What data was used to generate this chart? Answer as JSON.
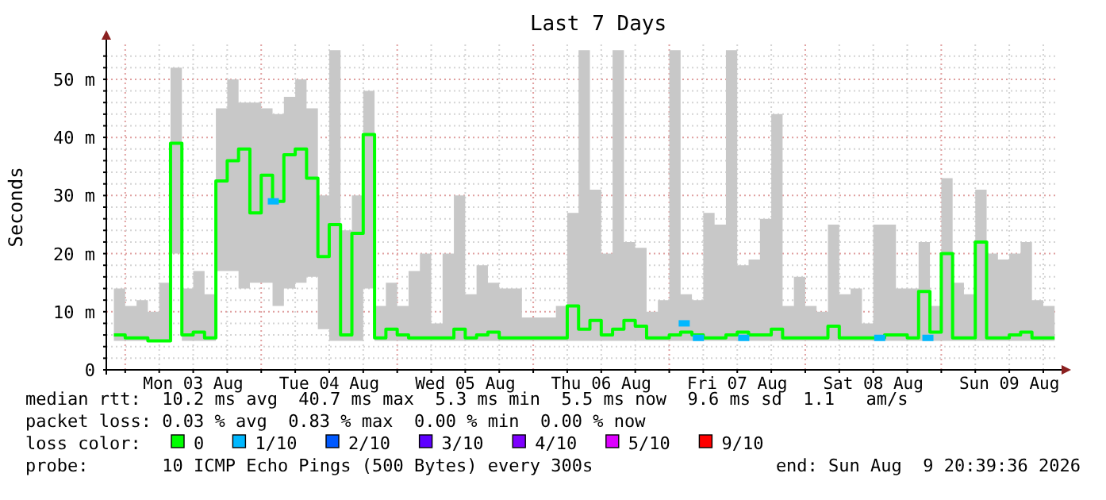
{
  "chart_data": {
    "type": "step",
    "title": "Last 7 Days",
    "ylabel": "Seconds",
    "xlim": [
      "2026-08-02T20:40",
      "2026-08-09T20:40"
    ],
    "xticks": [
      {
        "value": "2026-08-03T00:00",
        "label": null
      },
      {
        "value": "2026-08-03T06:00",
        "label": null
      },
      {
        "value": "2026-08-03T12:00",
        "label": "Mon 03 Aug"
      },
      {
        "value": "2026-08-03T18:00",
        "label": null
      },
      {
        "value": "2026-08-04T00:00",
        "label": null
      },
      {
        "value": "2026-08-04T06:00",
        "label": null
      },
      {
        "value": "2026-08-04T12:00",
        "label": "Tue 04 Aug"
      },
      {
        "value": "2026-08-04T18:00",
        "label": null
      },
      {
        "value": "2026-08-05T00:00",
        "label": null
      },
      {
        "value": "2026-08-05T06:00",
        "label": null
      },
      {
        "value": "2026-08-05T12:00",
        "label": "Wed 05 Aug"
      },
      {
        "value": "2026-08-05T18:00",
        "label": null
      },
      {
        "value": "2026-08-06T00:00",
        "label": null
      },
      {
        "value": "2026-08-06T06:00",
        "label": null
      },
      {
        "value": "2026-08-06T12:00",
        "label": "Thu 06 Aug"
      },
      {
        "value": "2026-08-06T18:00",
        "label": null
      },
      {
        "value": "2026-08-07T00:00",
        "label": null
      },
      {
        "value": "2026-08-07T06:00",
        "label": null
      },
      {
        "value": "2026-08-07T12:00",
        "label": "Fri 07 Aug"
      },
      {
        "value": "2026-08-07T18:00",
        "label": null
      },
      {
        "value": "2026-08-08T00:00",
        "label": null
      },
      {
        "value": "2026-08-08T06:00",
        "label": null
      },
      {
        "value": "2026-08-08T12:00",
        "label": "Sat 08 Aug"
      },
      {
        "value": "2026-08-08T18:00",
        "label": null
      },
      {
        "value": "2026-08-09T00:00",
        "label": null
      },
      {
        "value": "2026-08-09T06:00",
        "label": null
      },
      {
        "value": "2026-08-09T12:00",
        "label": "Sun 09 Aug"
      },
      {
        "value": "2026-08-09T18:00",
        "label": null
      }
    ],
    "ylim": [
      0,
      56
    ],
    "yticks": [
      {
        "value": 0,
        "label": "0"
      },
      {
        "value": 2,
        "label": null
      },
      {
        "value": 4,
        "label": null
      },
      {
        "value": 6,
        "label": null
      },
      {
        "value": 8,
        "label": null
      },
      {
        "value": 10,
        "label": "10 m"
      },
      {
        "value": 12,
        "label": null
      },
      {
        "value": 14,
        "label": null
      },
      {
        "value": 16,
        "label": null
      },
      {
        "value": 18,
        "label": null
      },
      {
        "value": 20,
        "label": "20 m"
      },
      {
        "value": 22,
        "label": null
      },
      {
        "value": 24,
        "label": null
      },
      {
        "value": 26,
        "label": null
      },
      {
        "value": 28,
        "label": null
      },
      {
        "value": 30,
        "label": "30 m"
      },
      {
        "value": 32,
        "label": null
      },
      {
        "value": 34,
        "label": null
      },
      {
        "value": 36,
        "label": null
      },
      {
        "value": 38,
        "label": null
      },
      {
        "value": 40,
        "label": "40 m"
      },
      {
        "value": 42,
        "label": null
      },
      {
        "value": 44,
        "label": null
      },
      {
        "value": 46,
        "label": null
      },
      {
        "value": 48,
        "label": null
      },
      {
        "value": 50,
        "label": "50 m"
      },
      {
        "value": 52,
        "label": null
      },
      {
        "value": 54,
        "label": null
      }
    ],
    "grid": true,
    "legend": "bottom",
    "series": [
      {
        "name": "0",
        "color": "#00ff00",
        "x": [
          "2026-08-02T22:00",
          "2026-08-03T00:00",
          "2026-08-03T02:00",
          "2026-08-03T04:00",
          "2026-08-03T06:00",
          "2026-08-03T08:00",
          "2026-08-03T10:00",
          "2026-08-03T12:00",
          "2026-08-03T14:00",
          "2026-08-03T16:00",
          "2026-08-03T18:00",
          "2026-08-03T20:00",
          "2026-08-03T22:00",
          "2026-08-04T00:00",
          "2026-08-04T02:00",
          "2026-08-04T04:00",
          "2026-08-04T06:00",
          "2026-08-04T08:00",
          "2026-08-04T10:00",
          "2026-08-04T12:00",
          "2026-08-04T14:00",
          "2026-08-04T16:00",
          "2026-08-04T18:00",
          "2026-08-04T20:00",
          "2026-08-04T22:00",
          "2026-08-05T00:00",
          "2026-08-05T02:00",
          "2026-08-05T04:00",
          "2026-08-05T06:00",
          "2026-08-05T08:00",
          "2026-08-05T10:00",
          "2026-08-05T12:00",
          "2026-08-05T14:00",
          "2026-08-05T16:00",
          "2026-08-05T18:00",
          "2026-08-05T20:00",
          "2026-08-05T22:00",
          "2026-08-06T00:00",
          "2026-08-06T02:00",
          "2026-08-06T04:00",
          "2026-08-06T06:00",
          "2026-08-06T08:00",
          "2026-08-06T10:00",
          "2026-08-06T12:00",
          "2026-08-06T14:00",
          "2026-08-06T16:00",
          "2026-08-06T18:00",
          "2026-08-06T20:00",
          "2026-08-06T22:00",
          "2026-08-07T00:00",
          "2026-08-07T02:00",
          "2026-08-07T04:00",
          "2026-08-07T06:00",
          "2026-08-07T08:00",
          "2026-08-07T10:00",
          "2026-08-07T12:00",
          "2026-08-07T14:00",
          "2026-08-07T16:00",
          "2026-08-07T18:00",
          "2026-08-07T20:00",
          "2026-08-07T22:00",
          "2026-08-08T00:00",
          "2026-08-08T02:00",
          "2026-08-08T04:00",
          "2026-08-08T06:00",
          "2026-08-08T08:00",
          "2026-08-08T10:00",
          "2026-08-08T12:00",
          "2026-08-08T14:00",
          "2026-08-08T16:00",
          "2026-08-08T18:00",
          "2026-08-08T20:00",
          "2026-08-08T22:00",
          "2026-08-09T00:00",
          "2026-08-09T02:00",
          "2026-08-09T04:00",
          "2026-08-09T06:00",
          "2026-08-09T08:00",
          "2026-08-09T10:00",
          "2026-08-09T12:00",
          "2026-08-09T14:00",
          "2026-08-09T16:00",
          "2026-08-09T18:00",
          "2026-08-09T20:00"
        ],
        "values": [
          6,
          5.5,
          5.5,
          5,
          5,
          39,
          6,
          6.5,
          5.5,
          32.5,
          36,
          38,
          27,
          33.5,
          29,
          37,
          38,
          33,
          19.5,
          25,
          6,
          23.5,
          40.5,
          5.5,
          7,
          6,
          5.5,
          5.5,
          5.5,
          5.5,
          7,
          5.5,
          6,
          6.5,
          5.5,
          5.5,
          5.5,
          5.5,
          5.5,
          5.5,
          11,
          7,
          8.5,
          6,
          7,
          8.5,
          7.5,
          5.5,
          5.5,
          6,
          6.5,
          6,
          5.5,
          5.5,
          6,
          6.5,
          6,
          6,
          7,
          5.5,
          5.5,
          5.5,
          5.5,
          7.5,
          5.5,
          5.5,
          5.5,
          5.5,
          6,
          6,
          5.5,
          13.5,
          6.5,
          20,
          5.5,
          5.5,
          22,
          5.5,
          5.5,
          6,
          6.5,
          5.5,
          5.5,
          5.5
        ],
        "lower": [
          5,
          5,
          5,
          5,
          5,
          20,
          5,
          5,
          5,
          17,
          17,
          14,
          15,
          15,
          11,
          14,
          15,
          16,
          7,
          5,
          5,
          5,
          14,
          5,
          5,
          5,
          5,
          5,
          5,
          5,
          5,
          5,
          5,
          5,
          5,
          5,
          5,
          5,
          5,
          5,
          5,
          5,
          5,
          5,
          5,
          5,
          5,
          5,
          5,
          5,
          5,
          5,
          5,
          5,
          5,
          5,
          5,
          5,
          5,
          5,
          5,
          5,
          5,
          5,
          5,
          5,
          5,
          5,
          5,
          5,
          5,
          5,
          5,
          5,
          5,
          5,
          5,
          5,
          5,
          5,
          5,
          5,
          5,
          5
        ],
        "upper": [
          14,
          11,
          12,
          10,
          15,
          52,
          14,
          17,
          13,
          45,
          50,
          46,
          46,
          45,
          44,
          47,
          50,
          45,
          30,
          55,
          24,
          30,
          48,
          11,
          15,
          11,
          17,
          20,
          8,
          20,
          30,
          13,
          18,
          15,
          14,
          14,
          9,
          9,
          9,
          11,
          27,
          55,
          31,
          20,
          55,
          22,
          21,
          10,
          12,
          55,
          13,
          12,
          27,
          25,
          55,
          18,
          19,
          26,
          44,
          11,
          16,
          11,
          10,
          25,
          13,
          14,
          8,
          25,
          25,
          14,
          14,
          22,
          11,
          33,
          15,
          13,
          31,
          20,
          19,
          20,
          22,
          12,
          11,
          10
        ]
      },
      {
        "name": "1/10",
        "color": "#00b8ff",
        "type": "scatter",
        "x": [
          "2026-08-04T02:00",
          "2026-08-07T02:30",
          "2026-08-07T05:00",
          "2026-08-07T13:00",
          "2026-08-08T13:00",
          "2026-08-08T21:30"
        ],
        "values": [
          29,
          8,
          5.5,
          5.5,
          5.5,
          5.5
        ]
      },
      {
        "name": "2/10",
        "color": "#0059ff",
        "type": "scatter"
      },
      {
        "name": "3/10",
        "color": "#5e00ff",
        "type": "scatter"
      },
      {
        "name": "4/10",
        "color": "#7e00ff",
        "type": "scatter"
      },
      {
        "name": "5/10",
        "color": "#dd00ff",
        "type": "scatter"
      },
      {
        "name": "9/10",
        "color": "#ff0000",
        "type": "scatter"
      }
    ],
    "annotations": [
      "median rtt:  10.2 ms avg  40.7 ms max  5.3 ms min  5.5 ms now  9.6 ms sd  1.1   am/s",
      "packet loss: 0.03 % avg  0.83 % max  0.00 % min  0.00 % now",
      "loss color:",
      "probe:       10 ICMP Echo Pings (500 Bytes) every 300s",
      "end: Sun Aug  9 20:39:36 2026"
    ]
  }
}
